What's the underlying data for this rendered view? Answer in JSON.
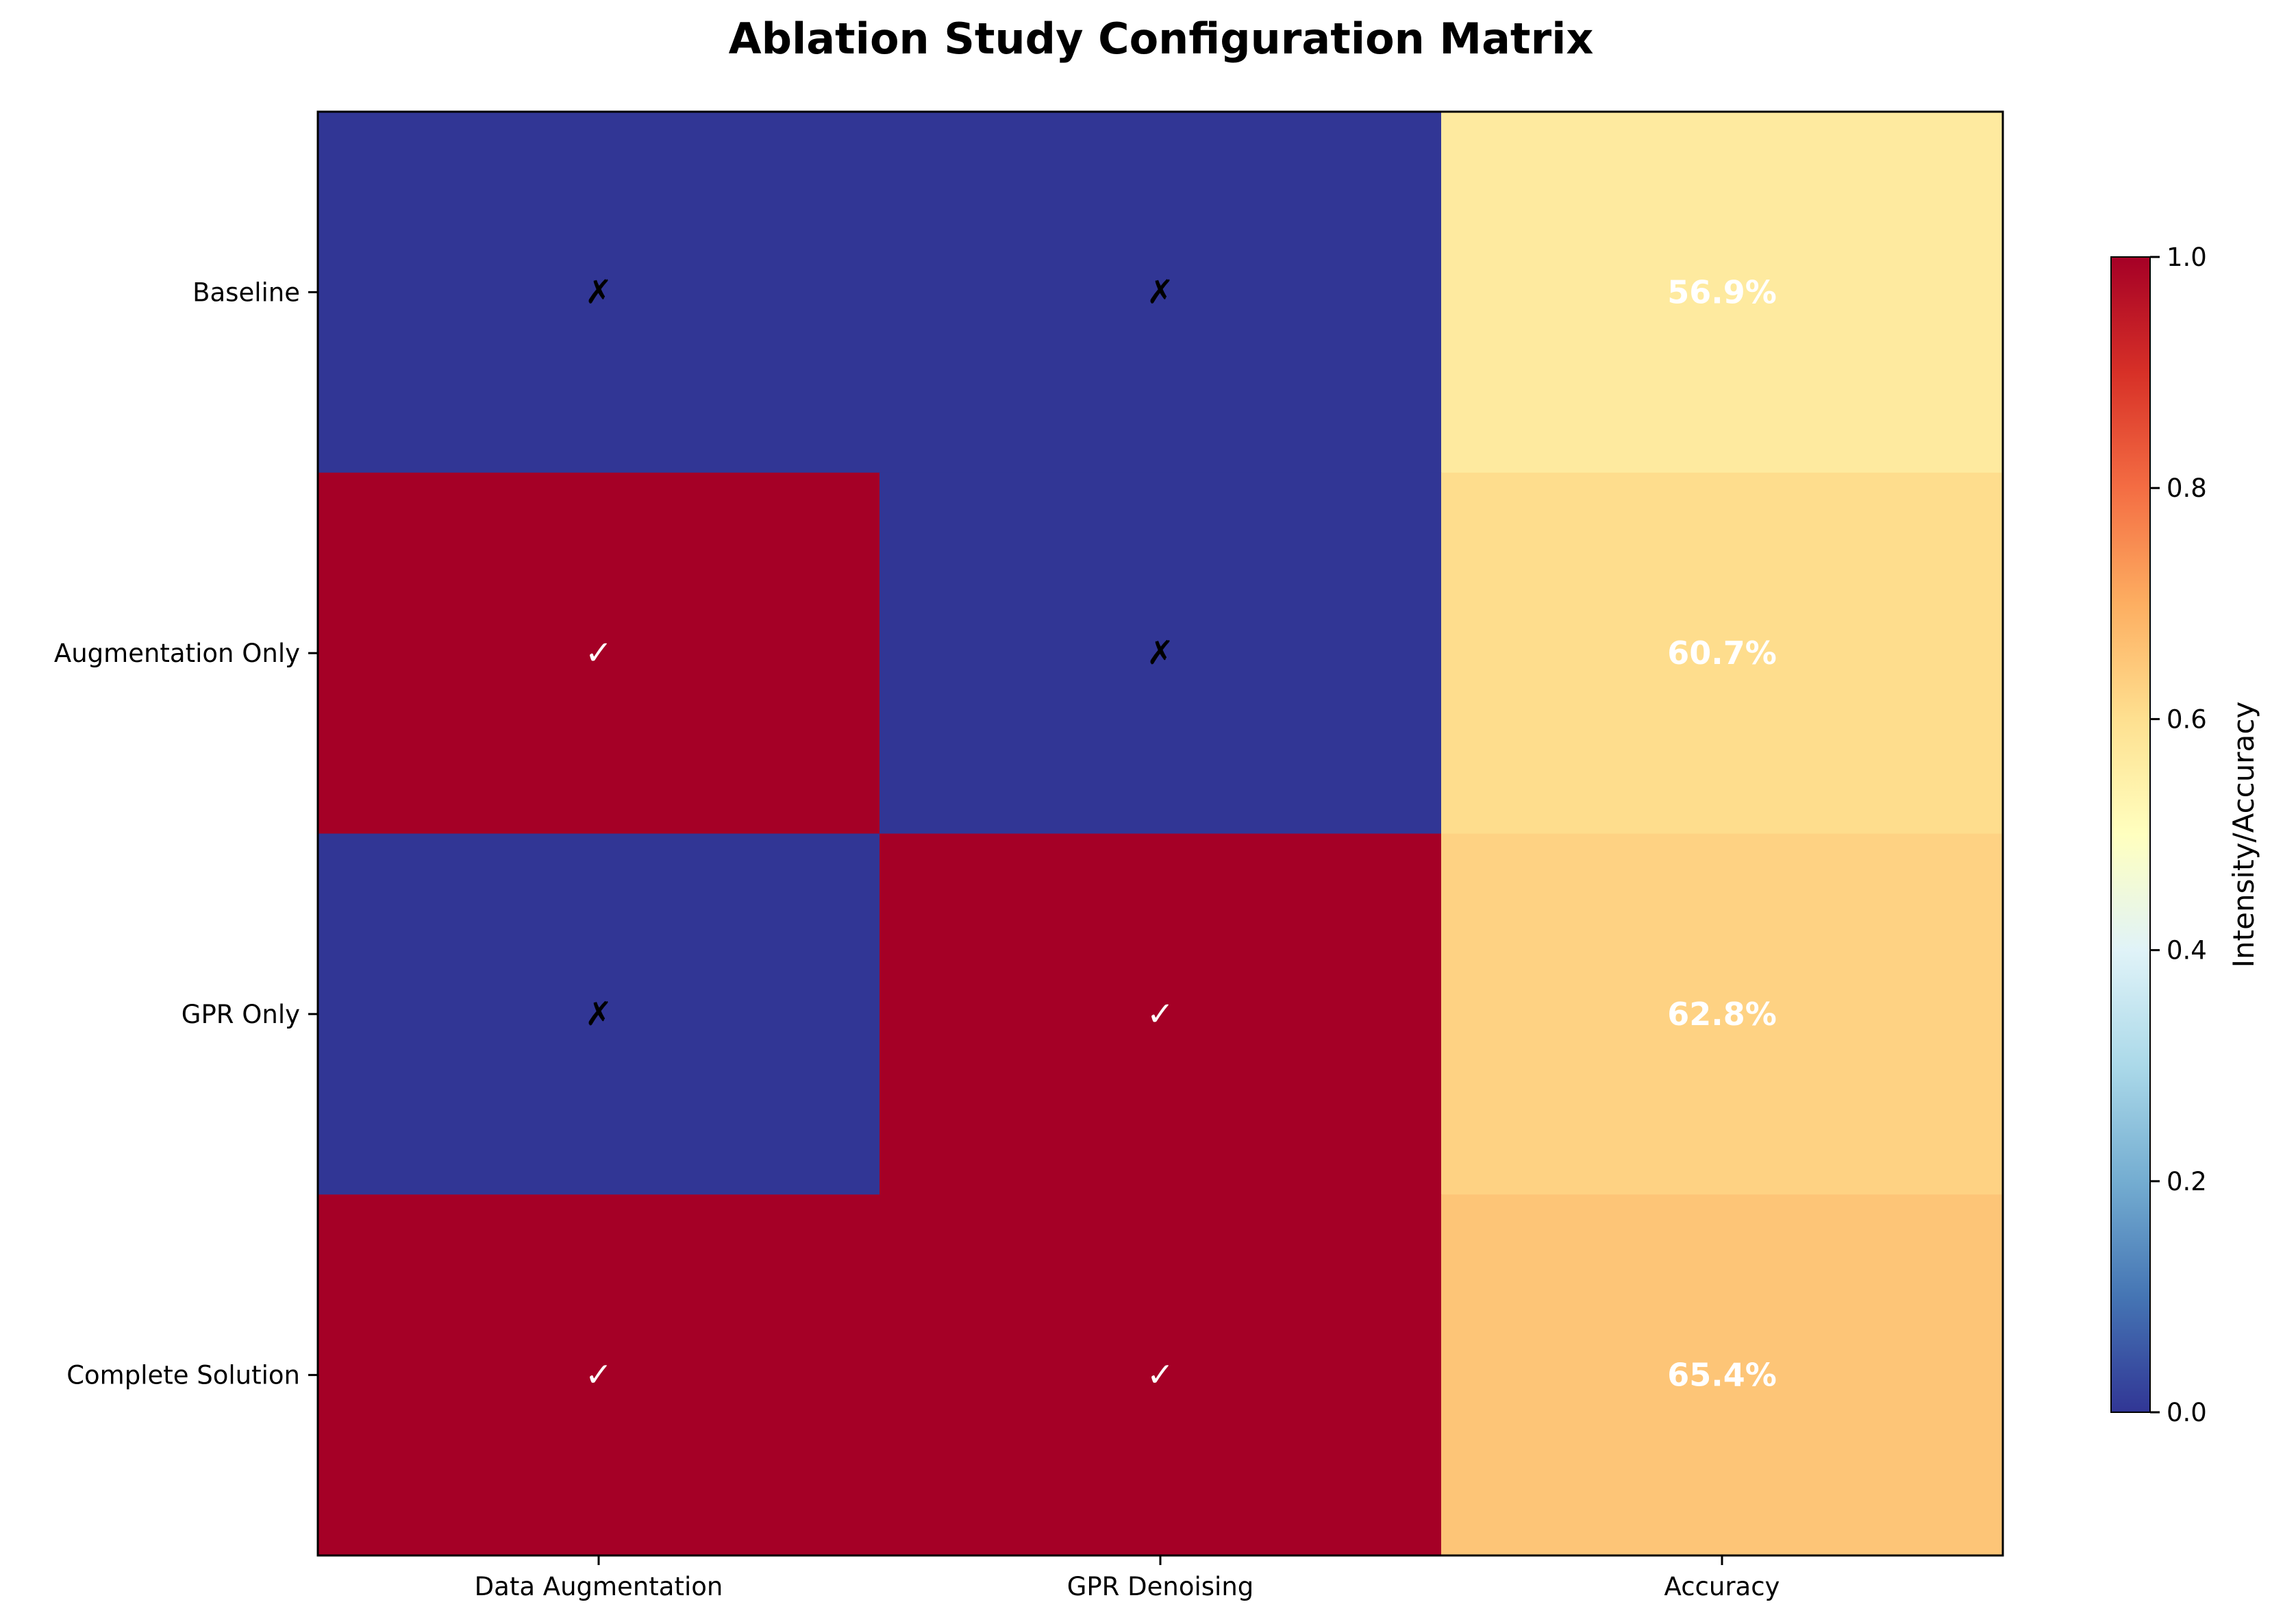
{
  "chart_data": {
    "type": "heatmap",
    "title": "Ablation Study Configuration Matrix",
    "rows": [
      "Baseline",
      "Augmentation Only",
      "GPR Only",
      "Complete Solution"
    ],
    "columns": [
      "Data Augmentation",
      "GPR Denoising",
      "Accuracy"
    ],
    "intensity": [
      [
        0,
        0,
        0.569
      ],
      [
        1,
        0,
        0.607
      ],
      [
        0,
        1,
        0.628
      ],
      [
        1,
        1,
        0.654
      ]
    ],
    "cell_text": [
      [
        "✗",
        "✗",
        "56.9%"
      ],
      [
        "✓",
        "✗",
        "60.7%"
      ],
      [
        "✗",
        "✓",
        "62.8%"
      ],
      [
        "✓",
        "✓",
        "65.4%"
      ]
    ],
    "colormap": "RdYlBu_r",
    "colorbar": {
      "label": "Intensity/Accuracy",
      "range": [
        0,
        1
      ],
      "ticks": [
        "0.0",
        "0.2",
        "0.4",
        "0.6",
        "0.8",
        "1.0"
      ],
      "position": "right"
    },
    "colors": {
      "on": "#a50026",
      "off": "#313695",
      "check_on": "#ffffff",
      "cross_off": "#000000"
    }
  }
}
